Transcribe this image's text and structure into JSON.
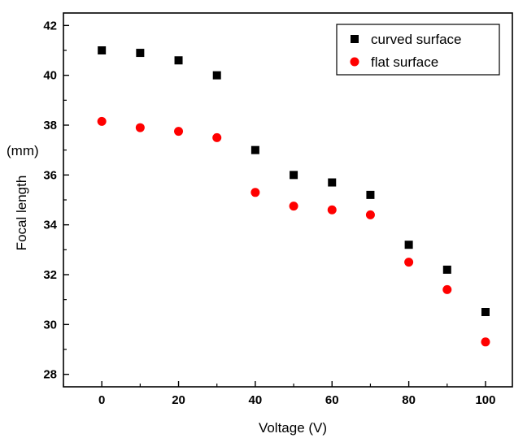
{
  "chart_data": {
    "type": "scatter",
    "title": "",
    "xlabel": "Voltage (V)",
    "ylabel": "Focal length",
    "ylabel_unit": "(mm)",
    "xlim": [
      -10,
      107
    ],
    "ylim": [
      27.5,
      42.5
    ],
    "xticks": [
      0,
      20,
      40,
      60,
      80,
      100
    ],
    "yticks": [
      28,
      30,
      32,
      34,
      36,
      38,
      40,
      42
    ],
    "grid": false,
    "legend_position": "top-right",
    "series": [
      {
        "name": "curved surface",
        "marker": "square",
        "color": "#000000",
        "x": [
          0,
          10,
          20,
          30,
          40,
          50,
          60,
          70,
          80,
          90,
          100
        ],
        "y": [
          41.0,
          40.9,
          40.6,
          40.0,
          37.0,
          36.0,
          35.7,
          35.2,
          33.2,
          32.2,
          30.5
        ]
      },
      {
        "name": "flat surface",
        "marker": "circle",
        "color": "#ff0000",
        "x": [
          0,
          10,
          20,
          30,
          40,
          50,
          60,
          70,
          80,
          90,
          100
        ],
        "y": [
          38.15,
          37.9,
          37.75,
          37.5,
          35.3,
          34.75,
          34.6,
          34.4,
          32.5,
          31.4,
          29.3
        ]
      }
    ]
  }
}
